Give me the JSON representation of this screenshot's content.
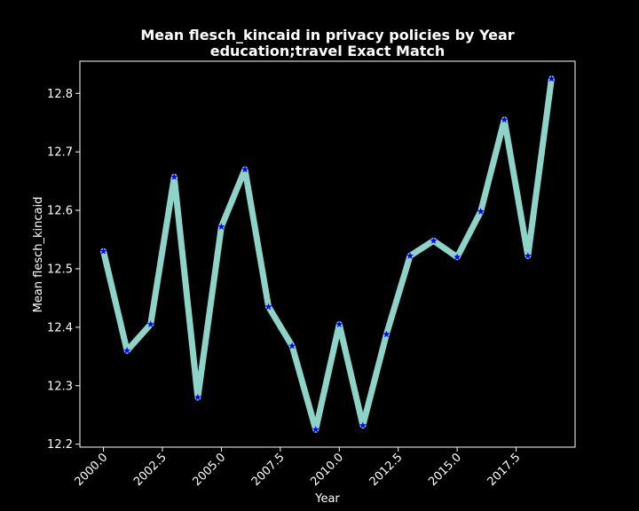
{
  "chart_data": {
    "type": "line",
    "title": "Mean flesch_kincaid in privacy policies by Year",
    "subtitle": "education;travel Exact Match",
    "xlabel": "Year",
    "ylabel": "Mean flesch_kincaid",
    "xlim": [
      1999.0,
      2020.0
    ],
    "ylim": [
      12.195,
      12.855
    ],
    "x_ticks": [
      "2000.0",
      "2002.5",
      "2005.0",
      "2007.5",
      "2010.0",
      "2012.5",
      "2015.0",
      "2017.5"
    ],
    "y_ticks": [
      "12.2",
      "12.3",
      "12.4",
      "12.5",
      "12.6",
      "12.7",
      "12.8"
    ],
    "grid": false,
    "line_color": "#8dd3c7",
    "marker_color": "#0000ff",
    "marker": "star",
    "x": [
      2000,
      2001,
      2002,
      2003,
      2004,
      2005,
      2006,
      2007,
      2008,
      2009,
      2010,
      2011,
      2012,
      2013,
      2014,
      2015,
      2016,
      2017,
      2018,
      2019
    ],
    "y": [
      12.53,
      12.36,
      12.405,
      12.657,
      12.28,
      12.572,
      12.67,
      12.435,
      12.368,
      12.225,
      12.405,
      12.232,
      12.388,
      12.522,
      12.548,
      12.52,
      12.598,
      12.755,
      12.522,
      12.825
    ]
  }
}
